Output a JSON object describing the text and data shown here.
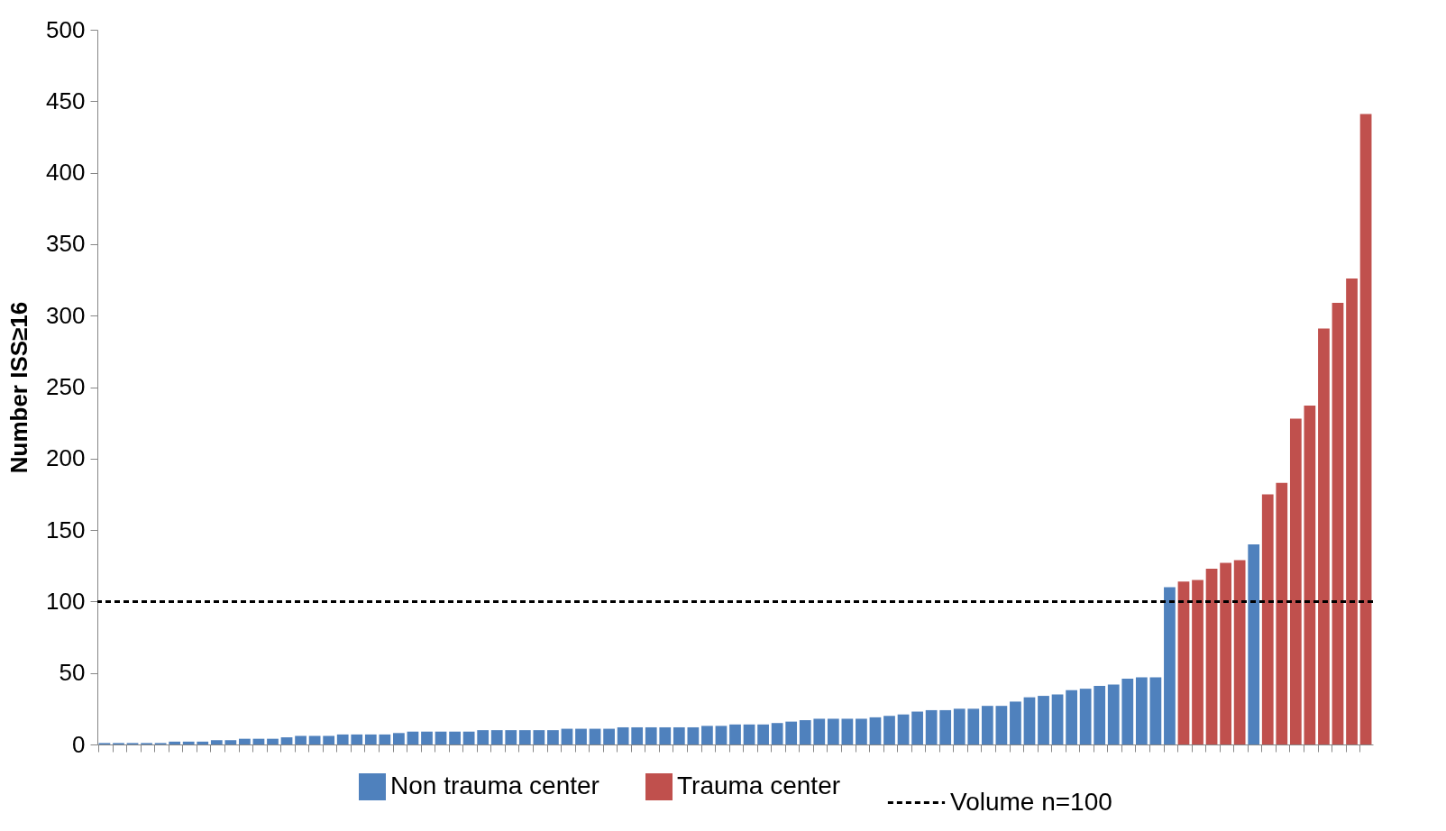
{
  "chart_data": {
    "type": "bar",
    "ylabel": "Number ISS≥16",
    "categories": [
      null,
      null,
      null,
      null,
      null,
      null,
      null,
      null,
      null,
      null,
      null,
      null,
      null,
      null,
      null,
      null,
      null,
      null,
      null,
      null,
      null,
      null,
      null,
      null,
      null,
      null,
      null,
      null,
      null,
      null,
      null,
      null,
      null,
      null,
      null,
      null,
      null,
      null,
      null,
      null,
      null,
      null,
      null,
      null,
      null,
      null,
      null,
      null,
      null,
      null,
      null,
      null,
      null,
      null,
      null,
      null,
      null,
      null,
      null,
      null,
      null,
      null,
      null,
      null,
      null,
      null,
      null,
      null,
      null,
      null,
      null,
      null,
      null,
      null,
      null,
      null,
      null,
      null,
      null,
      null,
      null,
      null,
      null,
      null,
      null,
      null,
      null,
      null,
      null,
      null,
      null
    ],
    "series": [
      {
        "name": "Non trauma center",
        "color": "#4f81bd",
        "values": [
          1,
          1,
          1,
          1,
          1,
          2,
          2,
          2,
          3,
          3,
          4,
          4,
          4,
          5,
          6,
          6,
          6,
          7,
          7,
          7,
          7,
          8,
          9,
          9,
          9,
          9,
          9,
          10,
          10,
          10,
          10,
          10,
          10,
          11,
          11,
          11,
          11,
          12,
          12,
          12,
          12,
          12,
          12,
          13,
          13,
          14,
          14,
          14,
          15,
          16,
          17,
          18,
          18,
          18,
          18,
          19,
          20,
          21,
          23,
          24,
          24,
          25,
          25,
          27,
          27,
          30,
          33,
          34,
          35,
          38,
          39,
          41,
          42,
          46,
          47,
          47,
          110,
          null,
          null,
          null,
          null,
          null,
          140,
          null,
          null,
          null,
          null,
          null,
          null,
          null,
          null
        ]
      },
      {
        "name": "Trauma center",
        "color": "#c0504d",
        "values": [
          null,
          null,
          null,
          null,
          null,
          null,
          null,
          null,
          null,
          null,
          null,
          null,
          null,
          null,
          null,
          null,
          null,
          null,
          null,
          null,
          null,
          null,
          null,
          null,
          null,
          null,
          null,
          null,
          null,
          null,
          null,
          null,
          null,
          null,
          null,
          null,
          null,
          null,
          null,
          null,
          null,
          null,
          null,
          null,
          null,
          null,
          null,
          null,
          null,
          null,
          null,
          null,
          null,
          null,
          null,
          null,
          null,
          null,
          null,
          null,
          null,
          null,
          null,
          null,
          null,
          null,
          null,
          null,
          null,
          null,
          null,
          null,
          null,
          null,
          null,
          null,
          null,
          114,
          115,
          123,
          127,
          129,
          null,
          175,
          183,
          228,
          237,
          291,
          309,
          326,
          441
        ]
      }
    ],
    "ref_lines": [
      {
        "axis": "y",
        "value": 100,
        "label": "Volume n=100",
        "color": "#000000",
        "line_style": "dashed"
      }
    ],
    "ylim": [
      0,
      500
    ],
    "yticks": [
      0,
      50,
      100,
      150,
      200,
      250,
      300,
      350,
      400,
      450,
      500
    ],
    "grid": false,
    "legend": "bottom",
    "tick_labels": "y"
  }
}
